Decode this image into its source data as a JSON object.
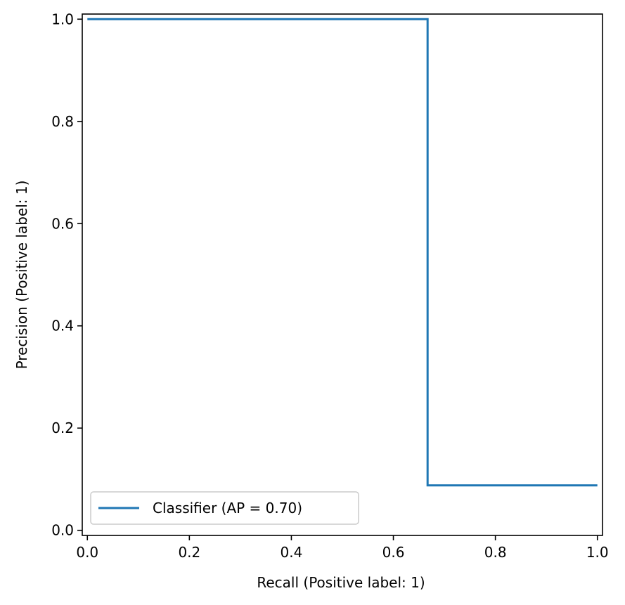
{
  "chart_data": {
    "type": "line",
    "title": "",
    "xlabel": "Recall (Positive label: 1)",
    "ylabel": "Precision (Positive label: 1)",
    "xlim": [
      -0.01,
      1.01
    ],
    "ylim": [
      -0.01,
      1.01
    ],
    "grid": false,
    "legend_position": "lower-left",
    "x_ticks": [
      0.0,
      0.2,
      0.4,
      0.6,
      0.8,
      1.0
    ],
    "x_tick_labels": [
      "0.0",
      "0.2",
      "0.4",
      "0.6",
      "0.8",
      "1.0"
    ],
    "y_ticks": [
      0.0,
      0.2,
      0.4,
      0.6,
      0.8,
      1.0
    ],
    "y_tick_labels": [
      "0.0",
      "0.2",
      "0.4",
      "0.6",
      "0.8",
      "1.0"
    ],
    "series": [
      {
        "name": "Classifier (AP = 0.70)",
        "color": "#1f77b4",
        "drawstyle": "steps-post",
        "points": [
          {
            "x": 1.0,
            "y": 0.088
          },
          {
            "x": 0.667,
            "y": 0.088
          },
          {
            "x": 0.667,
            "y": 1.0
          },
          {
            "x": 0.0,
            "y": 1.0
          }
        ]
      }
    ]
  }
}
